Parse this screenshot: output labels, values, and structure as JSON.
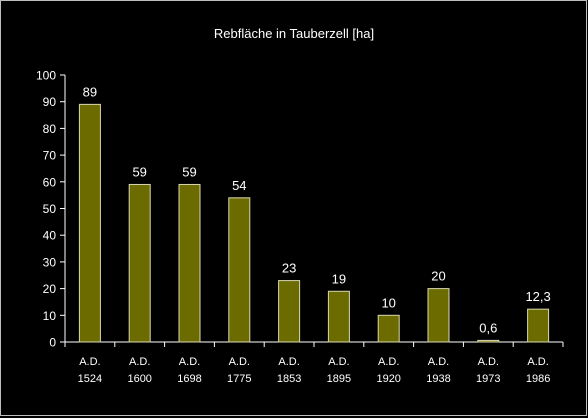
{
  "chart_data": {
    "type": "bar",
    "title": "Rebfläche in Tauberzell [ha]",
    "categories": [
      {
        "line1": "A.D.",
        "line2": "1524"
      },
      {
        "line1": "A.D.",
        "line2": "1600"
      },
      {
        "line1": "A.D.",
        "line2": "1698"
      },
      {
        "line1": "A.D.",
        "line2": "1775"
      },
      {
        "line1": "A.D.",
        "line2": "1853"
      },
      {
        "line1": "A.D.",
        "line2": "1895"
      },
      {
        "line1": "A.D.",
        "line2": "1920"
      },
      {
        "line1": "A.D.",
        "line2": "1938"
      },
      {
        "line1": "A.D.",
        "line2": "1973"
      },
      {
        "line1": "A.D.",
        "line2": "1986"
      }
    ],
    "values": [
      89,
      59,
      59,
      54,
      23,
      19,
      10,
      20,
      0.6,
      12.3
    ],
    "value_labels": [
      "89",
      "59",
      "59",
      "54",
      "23",
      "19",
      "10",
      "20",
      "0,6",
      "12,3"
    ],
    "ylim": [
      0,
      100
    ],
    "yticks": [
      "0",
      "10",
      "20",
      "30",
      "40",
      "50",
      "60",
      "70",
      "80",
      "90",
      "100"
    ],
    "grid": false,
    "legend": "none",
    "bar_color": "#6b6b00",
    "bar_border_color": "#d8d8b0",
    "axis_color": "#ffffff"
  }
}
